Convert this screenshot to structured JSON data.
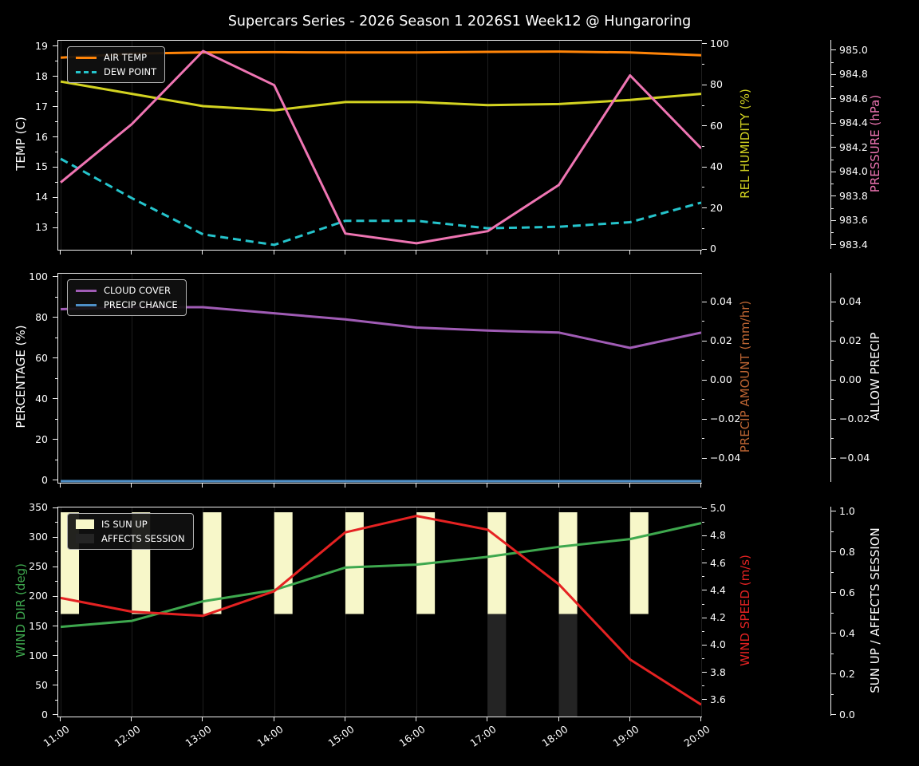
{
  "title": "Supercars Series - 2026 Season 1 2026S1 Week12 @ Hungaroring",
  "x_axis": {
    "hours": [
      11,
      12,
      13,
      14,
      15,
      16,
      17,
      18,
      19,
      20
    ],
    "labels": [
      "11:00",
      "12:00",
      "13:00",
      "14:00",
      "15:00",
      "16:00",
      "17:00",
      "18:00",
      "19:00",
      "20:00"
    ]
  },
  "chart_data": [
    {
      "type": "line",
      "axes": {
        "left": {
          "label": "TEMP (C)",
          "color": "#ffffff",
          "tick_vals": [
            13,
            14,
            15,
            16,
            17,
            18,
            19
          ],
          "tick_labels": [
            "13",
            "14",
            "15",
            "16",
            "17",
            "18",
            "19"
          ],
          "top_val": 19.21,
          "bot_val": 12.29
        },
        "right1": {
          "label": "REL HUMIDITY (%)",
          "color": "#d3d321",
          "tick_vals": [
            0,
            20,
            40,
            60,
            80,
            100
          ],
          "tick_labels": [
            "0",
            "20",
            "40",
            "60",
            "80",
            "100"
          ],
          "top_val": 101.9,
          "bot_val": 0.0
        },
        "right2": {
          "label": "PRESSURE (hPa)",
          "color": "#ef75b3",
          "tick_vals": [
            983.4,
            983.6,
            983.8,
            984.0,
            984.2,
            984.4,
            984.6,
            984.8,
            985.0
          ],
          "tick_labels": [
            "983.4",
            "983.6",
            "983.8",
            "984.0",
            "984.2",
            "984.4",
            "984.6",
            "984.8",
            "985.0"
          ],
          "top_val": 985.085,
          "bot_val": 983.367
        }
      },
      "series": [
        {
          "name": "AIR TEMP",
          "axis": "left",
          "color": "#ff8408",
          "style": "solid",
          "values": [
            18.65,
            18.78,
            18.82,
            18.83,
            18.82,
            18.82,
            18.84,
            18.85,
            18.82,
            18.73
          ]
        },
        {
          "name": "DEW POINT",
          "axis": "left",
          "color": "#25c4cc",
          "style": "dashed",
          "values": [
            15.3,
            14.0,
            12.8,
            12.45,
            13.25,
            13.25,
            13.0,
            13.05,
            13.2,
            13.85
          ]
        },
        {
          "name": "REL HUMIDITY",
          "axis": "right1",
          "color": "#d3d321",
          "style": "solid",
          "values": [
            82,
            76,
            70,
            68,
            72,
            72,
            70.5,
            71,
            73,
            76
          ]
        },
        {
          "name": "PRESSURE",
          "axis": "right2",
          "color": "#ef75b3",
          "style": "solid",
          "values": [
            983.92,
            984.4,
            985.0,
            984.72,
            983.5,
            983.42,
            983.52,
            983.9,
            984.8,
            984.2
          ]
        }
      ],
      "legend": [
        {
          "label": "AIR TEMP",
          "color": "#ff8408",
          "swatch": "line-solid"
        },
        {
          "label": "DEW POINT",
          "color": "#25c4cc",
          "swatch": "line-dashed"
        }
      ]
    },
    {
      "type": "line",
      "axes": {
        "left": {
          "label": "PERCENTAGE (%)",
          "color": "#ffffff",
          "tick_vals": [
            0,
            20,
            40,
            60,
            80,
            100
          ],
          "tick_labels": [
            "0",
            "20",
            "40",
            "60",
            "80",
            "100"
          ],
          "top_val": 101.96,
          "bot_val": -0.79
        },
        "right1": {
          "label": "PRECIP AMOUNT (mm/hr)",
          "color": "#bd6533",
          "tick_vals": [
            -0.04,
            -0.02,
            0.0,
            0.02,
            0.04
          ],
          "tick_labels": [
            "−0.04",
            "−0.02",
            "0.00",
            "0.02",
            "0.04"
          ],
          "top_val": 0.0547,
          "bot_val": -0.0522
        },
        "right2": {
          "label": "ALLOW PRECIP",
          "color": "#ffffff",
          "tick_vals": [
            -0.04,
            -0.02,
            0.0,
            0.02,
            0.04
          ],
          "tick_labels": [
            "−0.04",
            "−0.02",
            "0.00",
            "0.02",
            "0.04"
          ],
          "top_val": 0.0547,
          "bot_val": -0.0522
        }
      },
      "series": [
        {
          "name": "CLOUD COVER",
          "axis": "left",
          "color": "#a05cb5",
          "style": "solid",
          "values": [
            84.5,
            85.5,
            85.5,
            82.5,
            79.5,
            75.5,
            74,
            73,
            65.5,
            73
          ]
        },
        {
          "name": "PRECIP CHANCE",
          "axis": "left",
          "color": "#4e8fc7",
          "style": "solid",
          "values": [
            0,
            0,
            0,
            0,
            0,
            0,
            0,
            0,
            0,
            0
          ]
        }
      ],
      "legend": [
        {
          "label": "CLOUD COVER",
          "color": "#a05cb5",
          "swatch": "line-solid"
        },
        {
          "label": "PRECIP CHANCE",
          "color": "#4e8fc7",
          "swatch": "line-solid"
        }
      ]
    },
    {
      "type": "line-bar",
      "axes": {
        "left": {
          "label": "WIND DIR (deg)",
          "color": "#3ea84e",
          "tick_vals": [
            0,
            50,
            100,
            150,
            200,
            250,
            300,
            350
          ],
          "tick_labels": [
            "0",
            "50",
            "100",
            "150",
            "200",
            "250",
            "300",
            "350"
          ],
          "top_val": 351.35,
          "bot_val": -1.35
        },
        "right1": {
          "label": "WIND SPEED (m/s)",
          "color": "#e52222",
          "tick_vals": [
            3.6,
            3.8,
            4.0,
            4.2,
            4.4,
            4.6,
            4.8,
            5.0
          ],
          "tick_labels": [
            "3.6",
            "3.8",
            "4.0",
            "4.2",
            "4.4",
            "4.6",
            "4.8",
            "5.0"
          ],
          "top_val": 5.012,
          "bot_val": 3.483
        },
        "right2": {
          "label": "SUN UP / AFFECTS SESSION",
          "color": "#ffffff",
          "tick_vals": [
            0.0,
            0.2,
            0.4,
            0.6,
            0.8,
            1.0
          ],
          "tick_labels": [
            "0.0",
            "0.2",
            "0.4",
            "0.6",
            "0.8",
            "1.0"
          ],
          "top_val": 1.0235,
          "bot_val": -0.004
        }
      },
      "bars": [
        {
          "name": "IS SUN UP",
          "axis": "right2",
          "color": "#f7f7c9",
          "from": 1.0,
          "to": 0.5,
          "values": [
            1,
            1,
            1,
            1,
            1,
            1,
            1,
            1,
            1,
            0
          ]
        },
        {
          "name": "AFFECTS SESSION",
          "axis": "right2",
          "color": "#242424",
          "from": 0.5,
          "to": -0.004,
          "values": [
            0,
            0,
            0,
            0,
            0,
            0,
            1,
            1,
            0,
            0
          ]
        }
      ],
      "series": [
        {
          "name": "WIND DIR",
          "axis": "left",
          "color": "#3ea84e",
          "style": "solid",
          "values": [
            150,
            160,
            193,
            212,
            250,
            255,
            268,
            285,
            298,
            325
          ]
        },
        {
          "name": "WIND SPEED",
          "axis": "right1",
          "color": "#e52222",
          "style": "solid",
          "values": [
            4.35,
            4.25,
            4.22,
            4.4,
            4.83,
            4.95,
            4.85,
            4.45,
            3.9,
            3.57
          ]
        }
      ],
      "legend": [
        {
          "label": "IS SUN UP",
          "color": "#f7f7c9",
          "swatch": "patch"
        },
        {
          "label": "AFFECTS SESSION",
          "color": "#242424",
          "swatch": "patch"
        }
      ]
    }
  ]
}
